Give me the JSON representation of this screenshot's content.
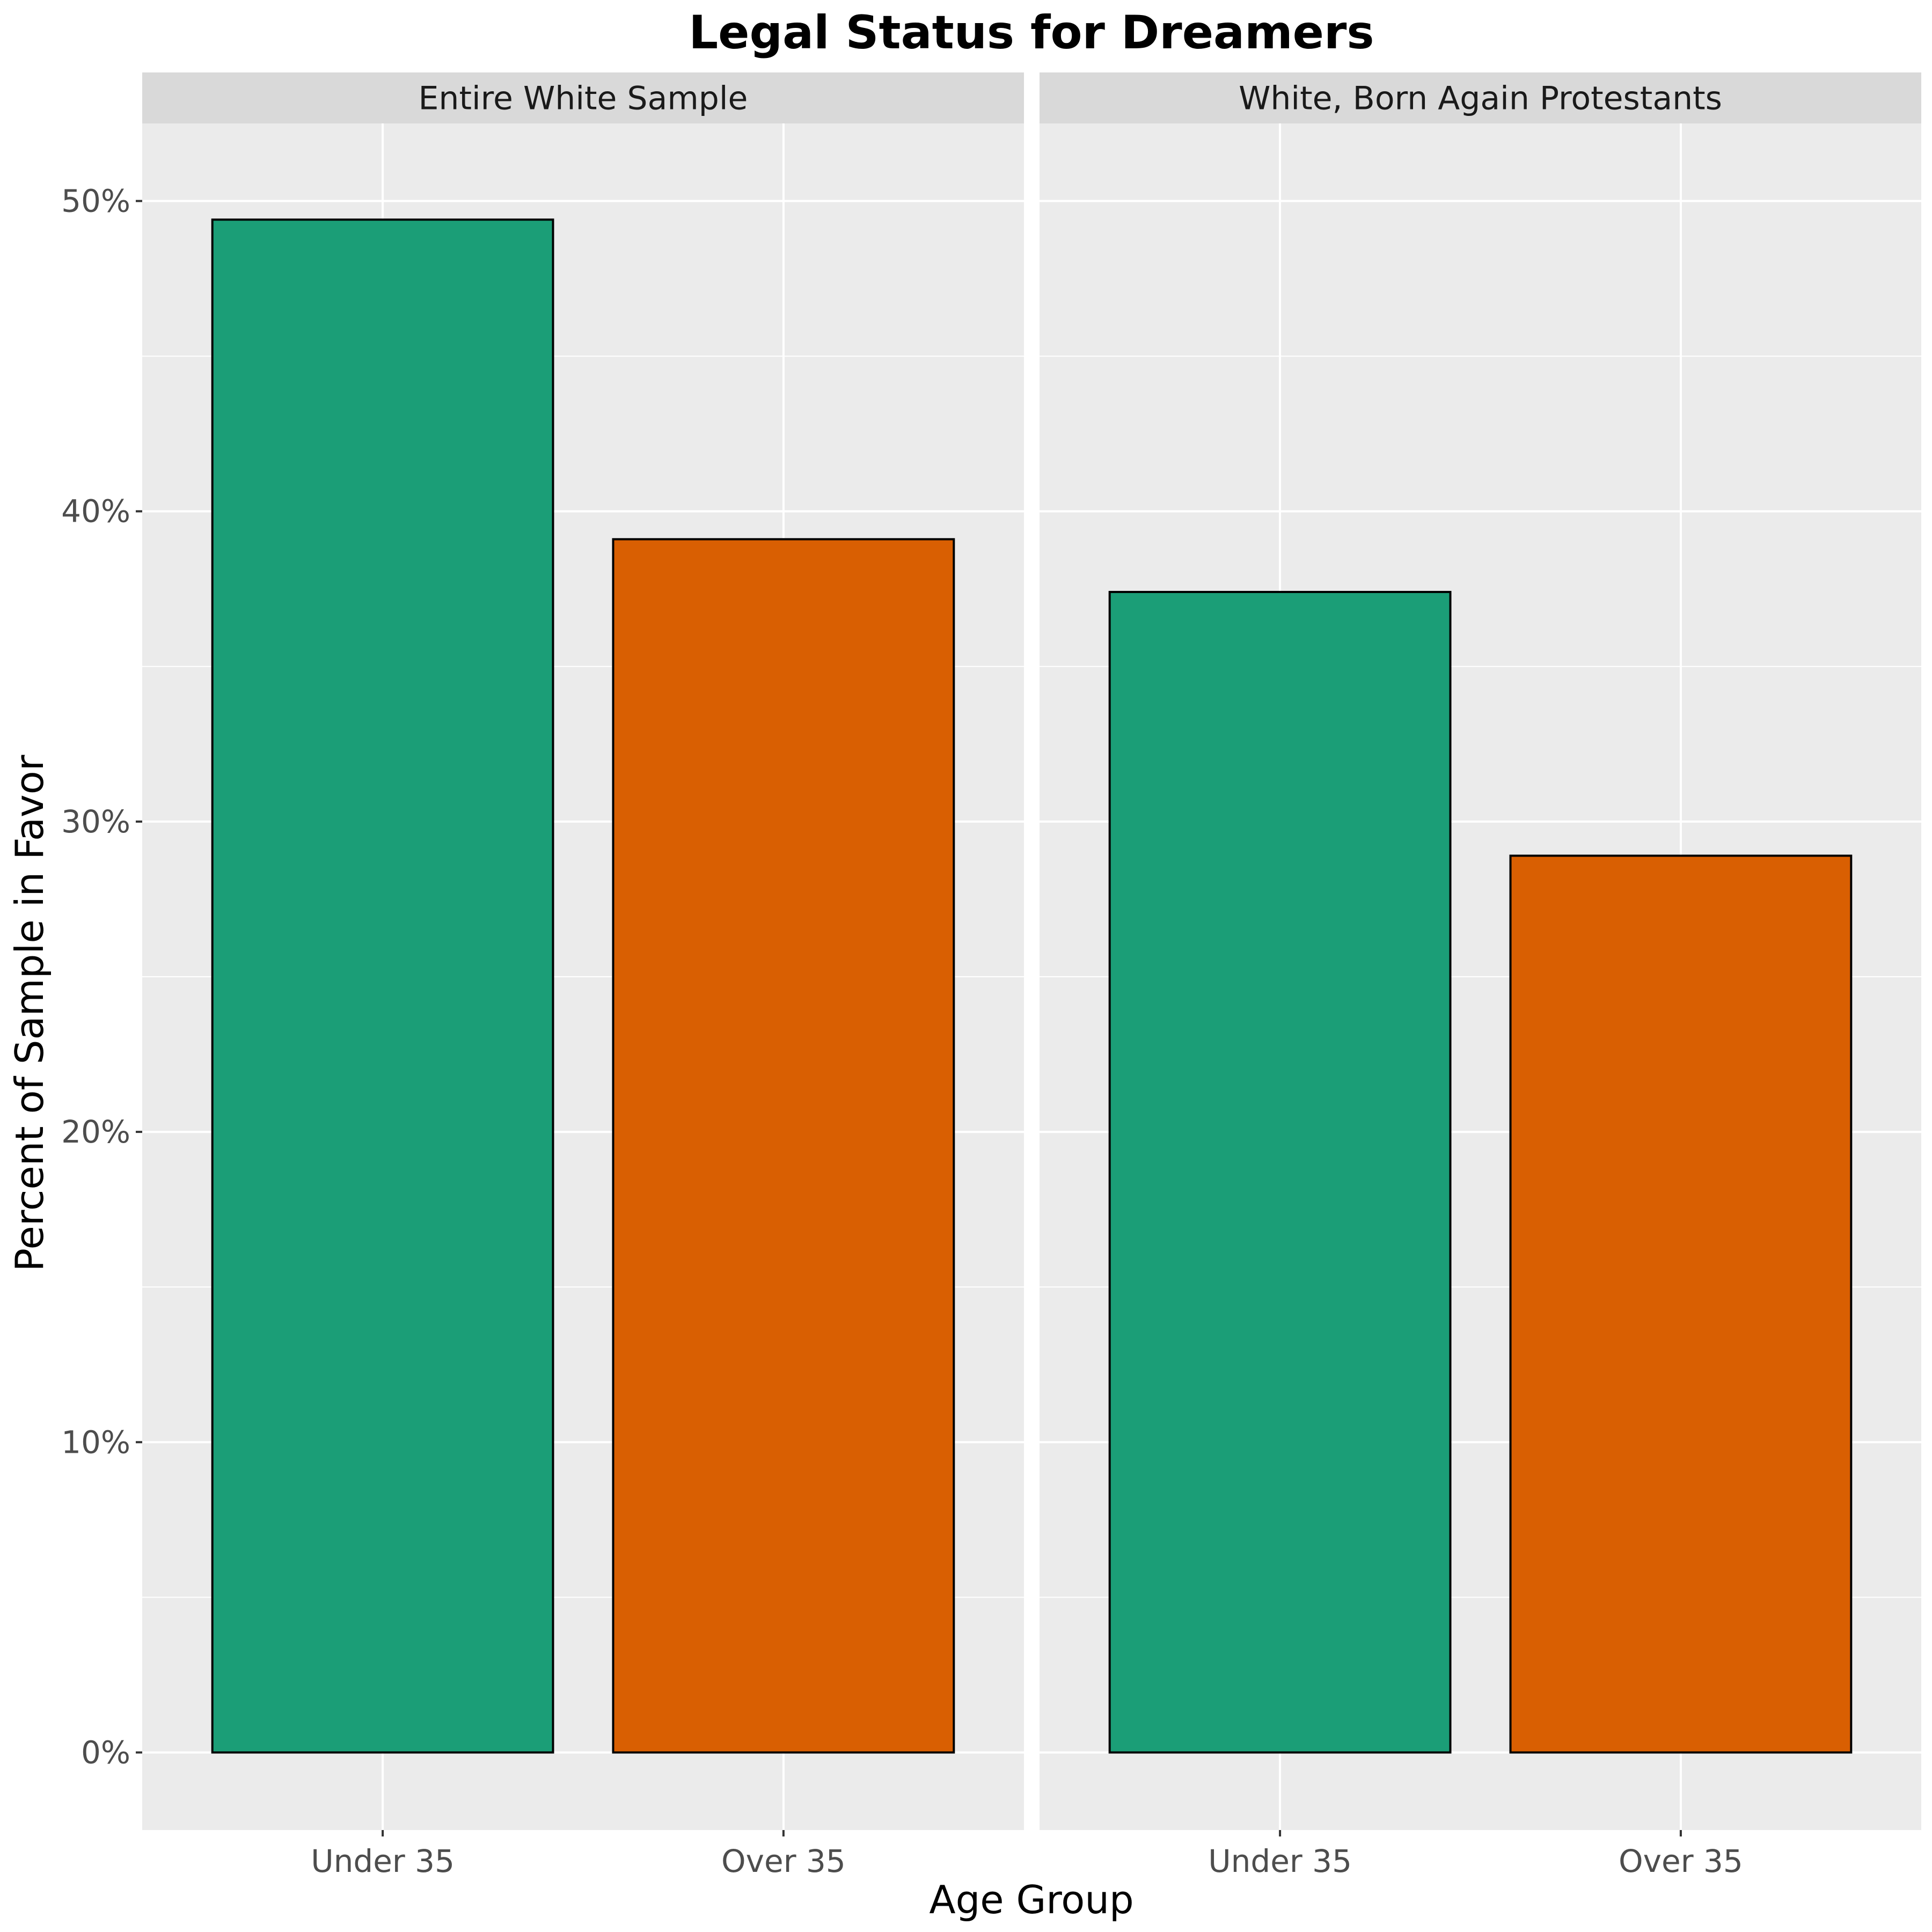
{
  "chart_data": {
    "type": "bar",
    "title": "Legal Status for Dreamers",
    "xlabel": "Age Group",
    "ylabel": "Percent of Sample in Favor",
    "ylim": [
      -2.5,
      52.5
    ],
    "y_ticks": [
      0,
      10,
      20,
      30,
      40,
      50
    ],
    "y_tick_labels": [
      "0%",
      "10%",
      "20%",
      "30%",
      "40%",
      "50%"
    ],
    "grid": true,
    "legend": "none",
    "categories": [
      "Under 35",
      "Over 35"
    ],
    "category_colors": [
      "#1B9E77",
      "#D95F02"
    ],
    "panels": [
      {
        "label": "Entire White Sample",
        "values": [
          49.4,
          39.1
        ]
      },
      {
        "label": "White, Born Again Protestants",
        "values": [
          37.4,
          28.9
        ]
      }
    ]
  },
  "colors": {
    "panel_bg": "#EBEBEB",
    "strip_bg": "#D9D9D9",
    "grid": "#FFFFFF",
    "bar_outline": "#000000"
  }
}
